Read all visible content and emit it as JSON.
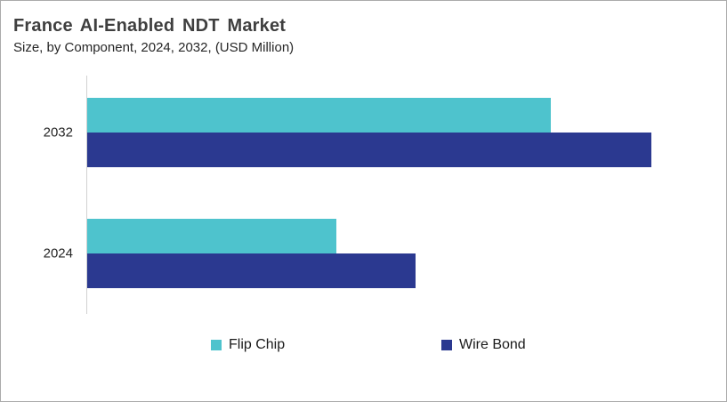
{
  "header": {
    "title": "France AI-Enabled NDT Market",
    "subtitle": "Size, by Component, 2024, 2032, (USD Million)"
  },
  "colors": {
    "flip_chip": "#4ec3cd",
    "wire_bond": "#2b3990",
    "title_text": "#3f3f3f",
    "axis_line": "#d2d2d2",
    "page_border": "#ababab"
  },
  "chart_data": {
    "type": "bar",
    "orientation": "horizontal",
    "title": "France AI-Enabled NDT Market",
    "subtitle": "Size, by Component, 2024, 2032, (USD Million)",
    "unit": "USD Million",
    "categories": [
      "2032",
      "2024"
    ],
    "series": [
      {
        "name": "Flip Chip",
        "color": "#4ec3cd",
        "values_relative_pct": [
          82.2,
          44.2
        ]
      },
      {
        "name": "Wire Bond",
        "color": "#2b3990",
        "values_relative_pct": [
          100,
          58.2
        ]
      }
    ],
    "value_axis": {
      "tick_labels_visible": false,
      "gridlines": false
    },
    "legend_position": "bottom"
  }
}
